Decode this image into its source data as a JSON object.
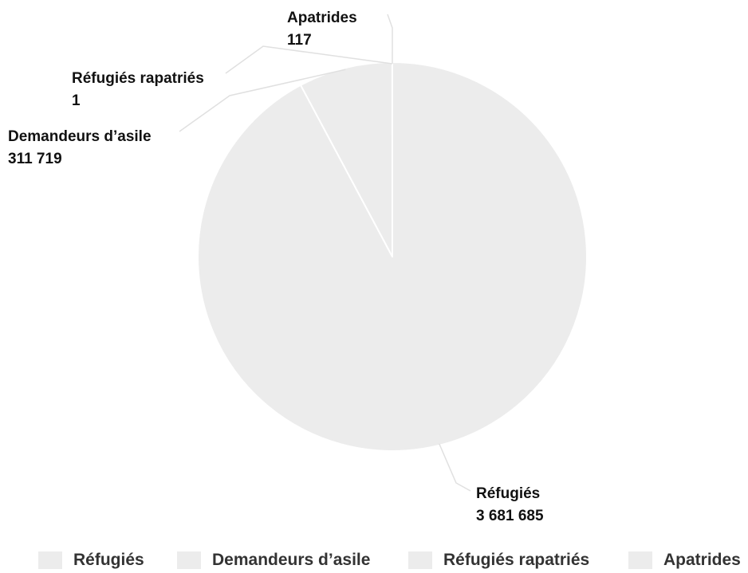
{
  "chart_data": {
    "type": "pie",
    "categories": [
      "Réfugiés",
      "Demandeurs d’asile",
      "Réfugiés rapatriés",
      "Apatrides"
    ],
    "values": [
      3681685,
      311719,
      1,
      117
    ],
    "value_labels": [
      "3 681 685",
      "311 719",
      "1",
      "117"
    ],
    "colors": [
      "#ececec",
      "#ececec",
      "#ececec",
      "#ececec"
    ],
    "legend_position": "bottom",
    "start_angle_deg": 0,
    "direction": "clockwise"
  }
}
